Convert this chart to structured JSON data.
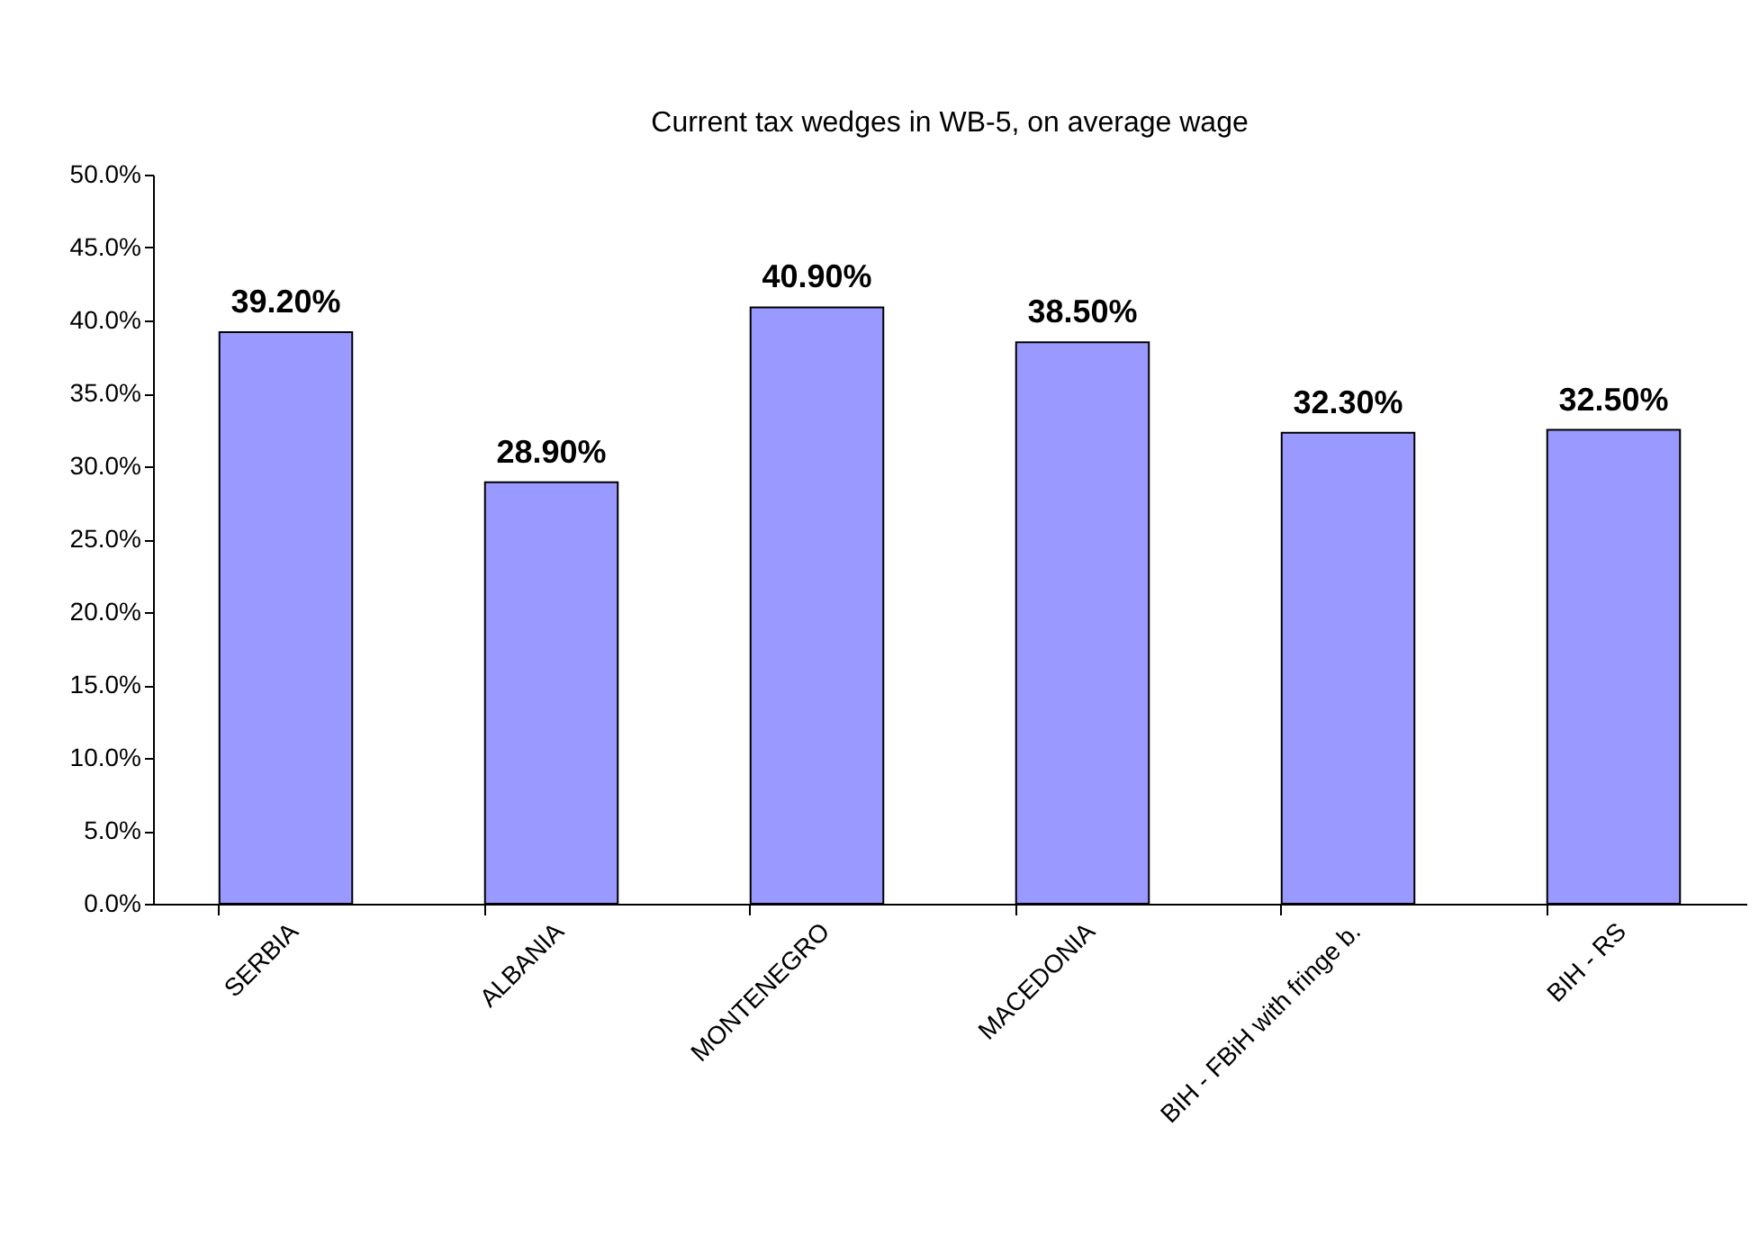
{
  "chart_data": {
    "type": "bar",
    "title": "Current tax wedges in WB-5, on average wage",
    "categories": [
      "SERBIA",
      "ALBANIA",
      "MONTENEGRO",
      "MACEDONIA",
      "BIH - FBiH with fringe b.",
      "BIH - RS"
    ],
    "values": [
      39.2,
      28.9,
      40.9,
      38.5,
      32.3,
      32.5
    ],
    "value_labels": [
      "39.20%",
      "28.90%",
      "40.90%",
      "38.50%",
      "32.30%",
      "32.50%"
    ],
    "color": "#9999ff",
    "ylim": [
      0,
      50
    ],
    "yticks": [
      {
        "value": 0,
        "label": "0.0%"
      },
      {
        "value": 5,
        "label": "5.0%"
      },
      {
        "value": 10,
        "label": "10.0%"
      },
      {
        "value": 15,
        "label": "15.0%"
      },
      {
        "value": 20,
        "label": "20.0%"
      },
      {
        "value": 25,
        "label": "25.0%"
      },
      {
        "value": 30,
        "label": "30.0%"
      },
      {
        "value": 35,
        "label": "35.0%"
      },
      {
        "value": 40,
        "label": "40.0%"
      },
      {
        "value": 45,
        "label": "45.0%"
      },
      {
        "value": 50,
        "label": "50.0%"
      }
    ],
    "grid": false
  }
}
